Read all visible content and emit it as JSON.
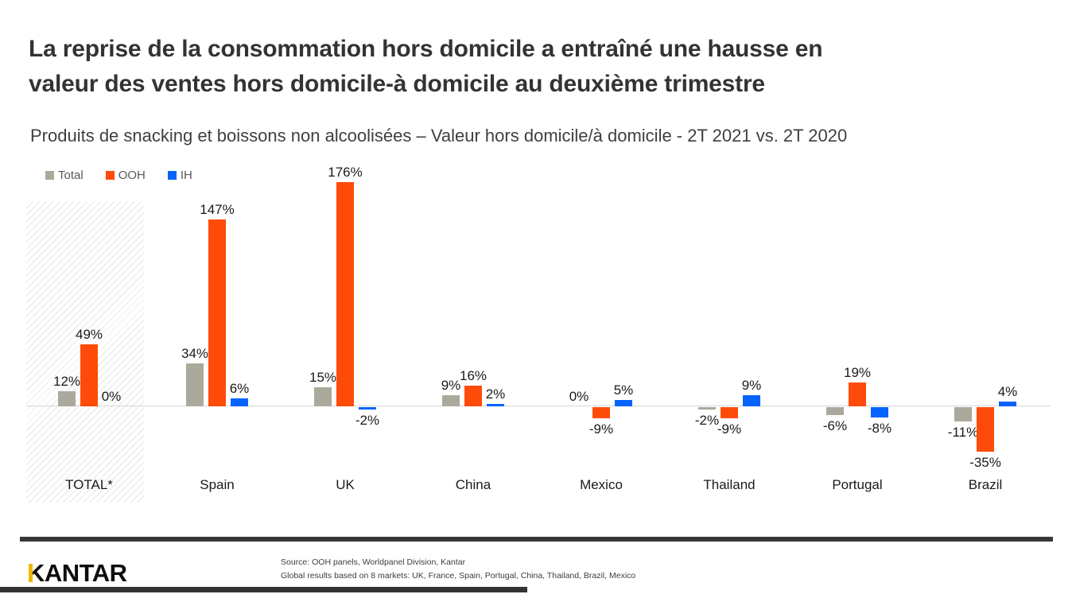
{
  "header": {
    "title_lines": [
      "La reprise de la consommation hors domicile a entraîné une hausse en",
      "valeur des ventes hors domicile-à domicile au deuxième trimestre"
    ],
    "subtitle": "Produits de snacking et boissons non alcoolisées – Valeur hors domicile/à domicile -  2T 2021 vs. 2T 2020"
  },
  "chart_data": {
    "type": "bar",
    "categories": [
      "TOTAL*",
      "Spain",
      "UK",
      "China",
      "Mexico",
      "Thailand",
      "Portugal",
      "Brazil"
    ],
    "series": [
      {
        "name": "Total",
        "color": "#ABA99B",
        "values": [
          12,
          34,
          15,
          9,
          0,
          -2,
          -6,
          -11
        ]
      },
      {
        "name": "OOH",
        "color": "#FF4B0A",
        "values": [
          49,
          147,
          176,
          16,
          -9,
          -9,
          19,
          -35
        ]
      },
      {
        "name": "IH",
        "color": "#0563FE",
        "values": [
          0,
          6,
          -2,
          2,
          5,
          9,
          -8,
          4
        ]
      }
    ],
    "data_label_format": "{v}%",
    "ylim": [
      -35,
      176
    ],
    "baseline": 0,
    "grid": false,
    "legend_position": "top-left",
    "highlighted_category": "TOTAL*",
    "highlight_style": "diagonal-hatch"
  },
  "footer": {
    "logo_text": "KANTAR",
    "source_line1": "Source: OOH panels, Worldpanel Division, Kantar",
    "source_line2": "Global results based on 8 markets: UK, France, Spain, Portugal, China, Thailand, Brazil, Mexico"
  },
  "colors": {
    "accent_orange": "#FF4B0A",
    "accent_blue": "#0563FE",
    "accent_gray": "#ABA99B",
    "logo_gold": "#EDB700",
    "separator_dark": "#383838"
  }
}
